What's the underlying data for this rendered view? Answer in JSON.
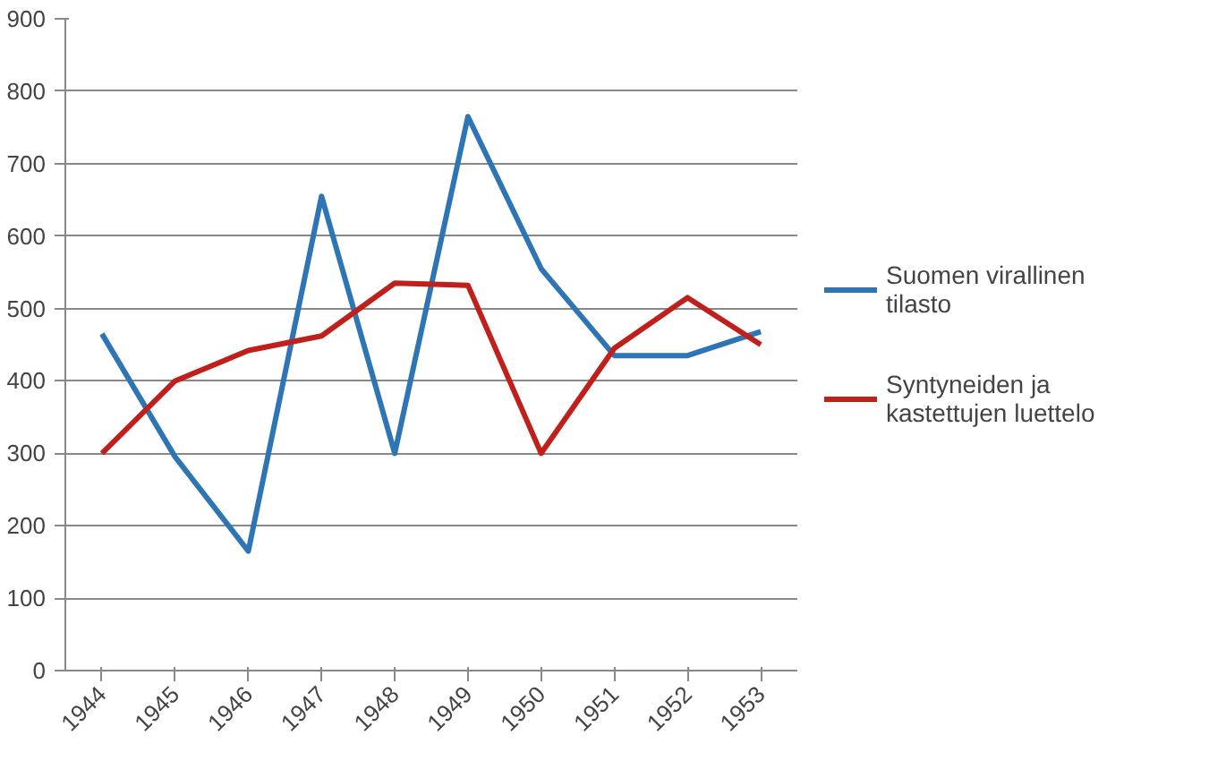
{
  "chart_data": {
    "type": "line",
    "categories": [
      "1944",
      "1945",
      "1946",
      "1947",
      "1948",
      "1949",
      "1950",
      "1951",
      "1952",
      "1953"
    ],
    "series": [
      {
        "name": "Suomen virallinen tilasto",
        "color": "#2e75b6",
        "values": [
          465,
          295,
          165,
          655,
          300,
          765,
          555,
          435,
          435,
          468
        ]
      },
      {
        "name": "Syntyneiden ja kastettujen luettelo",
        "color": "#c0201c",
        "values": [
          300,
          400,
          442,
          462,
          535,
          532,
          300,
          445,
          515,
          450
        ]
      }
    ],
    "ylim": [
      0,
      900
    ],
    "yticks": [
      0,
      100,
      200,
      300,
      400,
      500,
      600,
      700,
      800,
      900
    ],
    "grid": "y",
    "legend": "right",
    "marker": "none",
    "line_style": "solid"
  }
}
